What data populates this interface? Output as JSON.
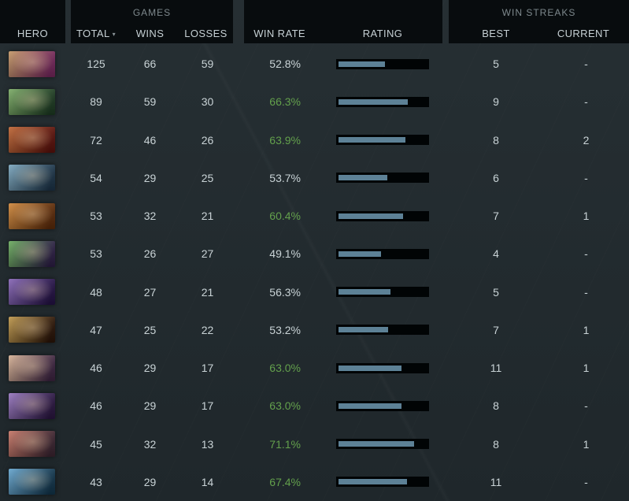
{
  "header": {
    "hero_label": "HERO",
    "games_group_label": "GAMES",
    "total_label": "TOTAL",
    "sort_icon": "▾",
    "wins_label": "WINS",
    "losses_label": "LOSSES",
    "win_rate_label": "WIN RATE",
    "rating_label": "RATING",
    "win_streaks_group_label": "WIN STREAKS",
    "best_label": "BEST",
    "current_label": "CURRENT"
  },
  "colors": {
    "background": "#222a2e",
    "header_block": "#080c0e",
    "text": "#c9d3d6",
    "muted_text": "#7e898d",
    "win_rate_high": "#63a04c",
    "rating_bar_fill": "#5d8196",
    "rating_bar_bg": "#000000"
  },
  "rows": [
    {
      "hero_id": "hero-1",
      "total": "125",
      "wins": "66",
      "losses": "59",
      "win_rate": "52.8%",
      "win_rate_high": false,
      "rating_pct": 53,
      "best": "5",
      "current": "-",
      "portrait_colors": [
        "#c59a6a",
        "#73275b"
      ]
    },
    {
      "hero_id": "hero-2",
      "total": "89",
      "wins": "59",
      "losses": "30",
      "win_rate": "66.3%",
      "win_rate_high": true,
      "rating_pct": 79,
      "best": "9",
      "current": "-",
      "portrait_colors": [
        "#7fae6a",
        "#1d3a22"
      ]
    },
    {
      "hero_id": "hero-3",
      "total": "72",
      "wins": "46",
      "losses": "26",
      "win_rate": "63.9%",
      "win_rate_high": true,
      "rating_pct": 76,
      "best": "8",
      "current": "2",
      "portrait_colors": [
        "#c06a3a",
        "#5a120c"
      ]
    },
    {
      "hero_id": "hero-4",
      "total": "54",
      "wins": "29",
      "losses": "25",
      "win_rate": "53.7%",
      "win_rate_high": false,
      "rating_pct": 55,
      "best": "6",
      "current": "-",
      "portrait_colors": [
        "#7fa9c0",
        "#1c3347"
      ]
    },
    {
      "hero_id": "hero-5",
      "total": "53",
      "wins": "32",
      "losses": "21",
      "win_rate": "60.4%",
      "win_rate_high": true,
      "rating_pct": 73,
      "best": "7",
      "current": "1",
      "portrait_colors": [
        "#d08a40",
        "#5a2a0a"
      ]
    },
    {
      "hero_id": "hero-6",
      "total": "53",
      "wins": "26",
      "losses": "27",
      "win_rate": "49.1%",
      "win_rate_high": false,
      "rating_pct": 48,
      "best": "4",
      "current": "-",
      "portrait_colors": [
        "#6fae62",
        "#2c1e44"
      ]
    },
    {
      "hero_id": "hero-7",
      "total": "48",
      "wins": "27",
      "losses": "21",
      "win_rate": "56.3%",
      "win_rate_high": false,
      "rating_pct": 59,
      "best": "5",
      "current": "-",
      "portrait_colors": [
        "#8a6ab8",
        "#241244"
      ]
    },
    {
      "hero_id": "hero-8",
      "total": "47",
      "wins": "25",
      "losses": "22",
      "win_rate": "53.2%",
      "win_rate_high": false,
      "rating_pct": 56,
      "best": "7",
      "current": "1",
      "portrait_colors": [
        "#c09a50",
        "#2a1408"
      ]
    },
    {
      "hero_id": "hero-9",
      "total": "46",
      "wins": "29",
      "losses": "17",
      "win_rate": "63.0%",
      "win_rate_high": true,
      "rating_pct": 71,
      "best": "11",
      "current": "1",
      "portrait_colors": [
        "#d8b498",
        "#3c2440"
      ]
    },
    {
      "hero_id": "hero-10",
      "total": "46",
      "wins": "29",
      "losses": "17",
      "win_rate": "63.0%",
      "win_rate_high": true,
      "rating_pct": 71,
      "best": "8",
      "current": "-",
      "portrait_colors": [
        "#9a7ac0",
        "#2a1640"
      ]
    },
    {
      "hero_id": "hero-11",
      "total": "45",
      "wins": "32",
      "losses": "13",
      "win_rate": "71.1%",
      "win_rate_high": true,
      "rating_pct": 86,
      "best": "8",
      "current": "1",
      "portrait_colors": [
        "#c87a6a",
        "#3a2430"
      ]
    },
    {
      "hero_id": "hero-12",
      "total": "43",
      "wins": "29",
      "losses": "14",
      "win_rate": "67.4%",
      "win_rate_high": true,
      "rating_pct": 78,
      "best": "11",
      "current": "-",
      "portrait_colors": [
        "#6aa8d0",
        "#12344a"
      ]
    }
  ]
}
